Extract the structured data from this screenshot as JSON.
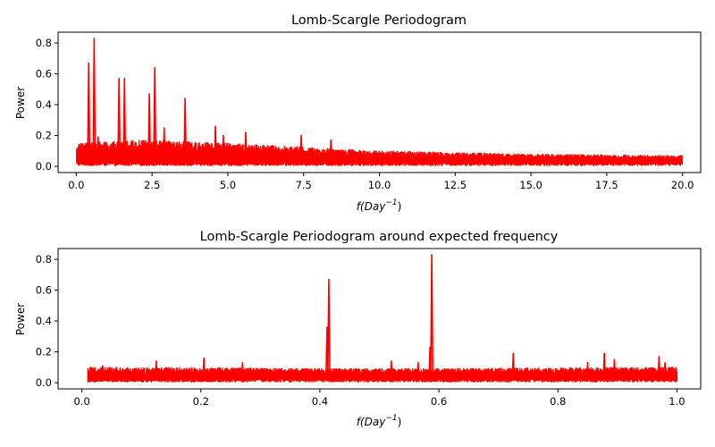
{
  "chart_data": [
    {
      "type": "line",
      "title": "Lomb-Scargle Periodogram",
      "xlabel_main": "f(Day",
      "xlabel_sup": "−1",
      "xlabel_close": ")",
      "ylabel": "Power",
      "xlim": [
        -0.6,
        20.6
      ],
      "ylim": [
        -0.04,
        0.87
      ],
      "xticks": [
        0,
        2.5,
        5,
        7.5,
        10,
        12.5,
        15,
        17.5,
        20
      ],
      "xtick_labels": [
        "0.0",
        "2.5",
        "5.0",
        "7.5",
        "10.0",
        "12.5",
        "15.0",
        "17.5",
        "20.0"
      ],
      "yticks": [
        0,
        0.2,
        0.4,
        0.6,
        0.8
      ],
      "ytick_labels": [
        "0.0",
        "0.2",
        "0.4",
        "0.6",
        "0.8"
      ],
      "grid": false,
      "color": "#ff0000",
      "series": [
        {
          "x_range": [
            0.01,
            20.0
          ],
          "noise_envelope": [
            {
              "x": 0.0,
              "y": 0.15
            },
            {
              "x": 2.0,
              "y": 0.17
            },
            {
              "x": 5.0,
              "y": 0.15
            },
            {
              "x": 8.0,
              "y": 0.12
            },
            {
              "x": 10.0,
              "y": 0.1
            },
            {
              "x": 15.0,
              "y": 0.08
            },
            {
              "x": 20.0,
              "y": 0.07
            }
          ],
          "peaks": [
            {
              "x": 0.41,
              "y": 0.67
            },
            {
              "x": 0.59,
              "y": 0.83
            },
            {
              "x": 0.72,
              "y": 0.19
            },
            {
              "x": 1.41,
              "y": 0.57
            },
            {
              "x": 1.59,
              "y": 0.57
            },
            {
              "x": 2.41,
              "y": 0.47
            },
            {
              "x": 2.59,
              "y": 0.64
            },
            {
              "x": 2.9,
              "y": 0.25
            },
            {
              "x": 3.59,
              "y": 0.44
            },
            {
              "x": 4.59,
              "y": 0.26
            },
            {
              "x": 4.85,
              "y": 0.2
            },
            {
              "x": 5.59,
              "y": 0.22
            },
            {
              "x": 7.42,
              "y": 0.2
            },
            {
              "x": 8.4,
              "y": 0.17
            }
          ]
        }
      ]
    },
    {
      "type": "line",
      "title": "Lomb-Scargle Periodogram around expected frequency",
      "xlabel_main": "f(Day",
      "xlabel_sup": "−1",
      "xlabel_close": ")",
      "ylabel": "Power",
      "xlim": [
        -0.04,
        1.04
      ],
      "ylim": [
        -0.04,
        0.87
      ],
      "xticks": [
        0,
        0.2,
        0.4,
        0.6,
        0.8,
        1.0
      ],
      "xtick_labels": [
        "0.0",
        "0.2",
        "0.4",
        "0.6",
        "0.8",
        "1.0"
      ],
      "yticks": [
        0,
        0.2,
        0.4,
        0.6,
        0.8
      ],
      "ytick_labels": [
        "0.0",
        "0.2",
        "0.4",
        "0.6",
        "0.8"
      ],
      "grid": false,
      "color": "#ff0000",
      "series": [
        {
          "x_range": [
            0.01,
            1.0
          ],
          "noise_envelope": [
            {
              "x": 0.0,
              "y": 0.1
            },
            {
              "x": 0.5,
              "y": 0.09
            },
            {
              "x": 1.0,
              "y": 0.1
            }
          ],
          "peaks": [
            {
              "x": 0.035,
              "y": 0.11
            },
            {
              "x": 0.125,
              "y": 0.14
            },
            {
              "x": 0.205,
              "y": 0.16
            },
            {
              "x": 0.27,
              "y": 0.13
            },
            {
              "x": 0.412,
              "y": 0.36
            },
            {
              "x": 0.415,
              "y": 0.67
            },
            {
              "x": 0.52,
              "y": 0.14
            },
            {
              "x": 0.565,
              "y": 0.13
            },
            {
              "x": 0.585,
              "y": 0.23
            },
            {
              "x": 0.588,
              "y": 0.83
            },
            {
              "x": 0.725,
              "y": 0.19
            },
            {
              "x": 0.85,
              "y": 0.13
            },
            {
              "x": 0.878,
              "y": 0.19
            },
            {
              "x": 0.895,
              "y": 0.15
            },
            {
              "x": 0.97,
              "y": 0.17
            },
            {
              "x": 0.98,
              "y": 0.13
            }
          ]
        }
      ]
    }
  ]
}
